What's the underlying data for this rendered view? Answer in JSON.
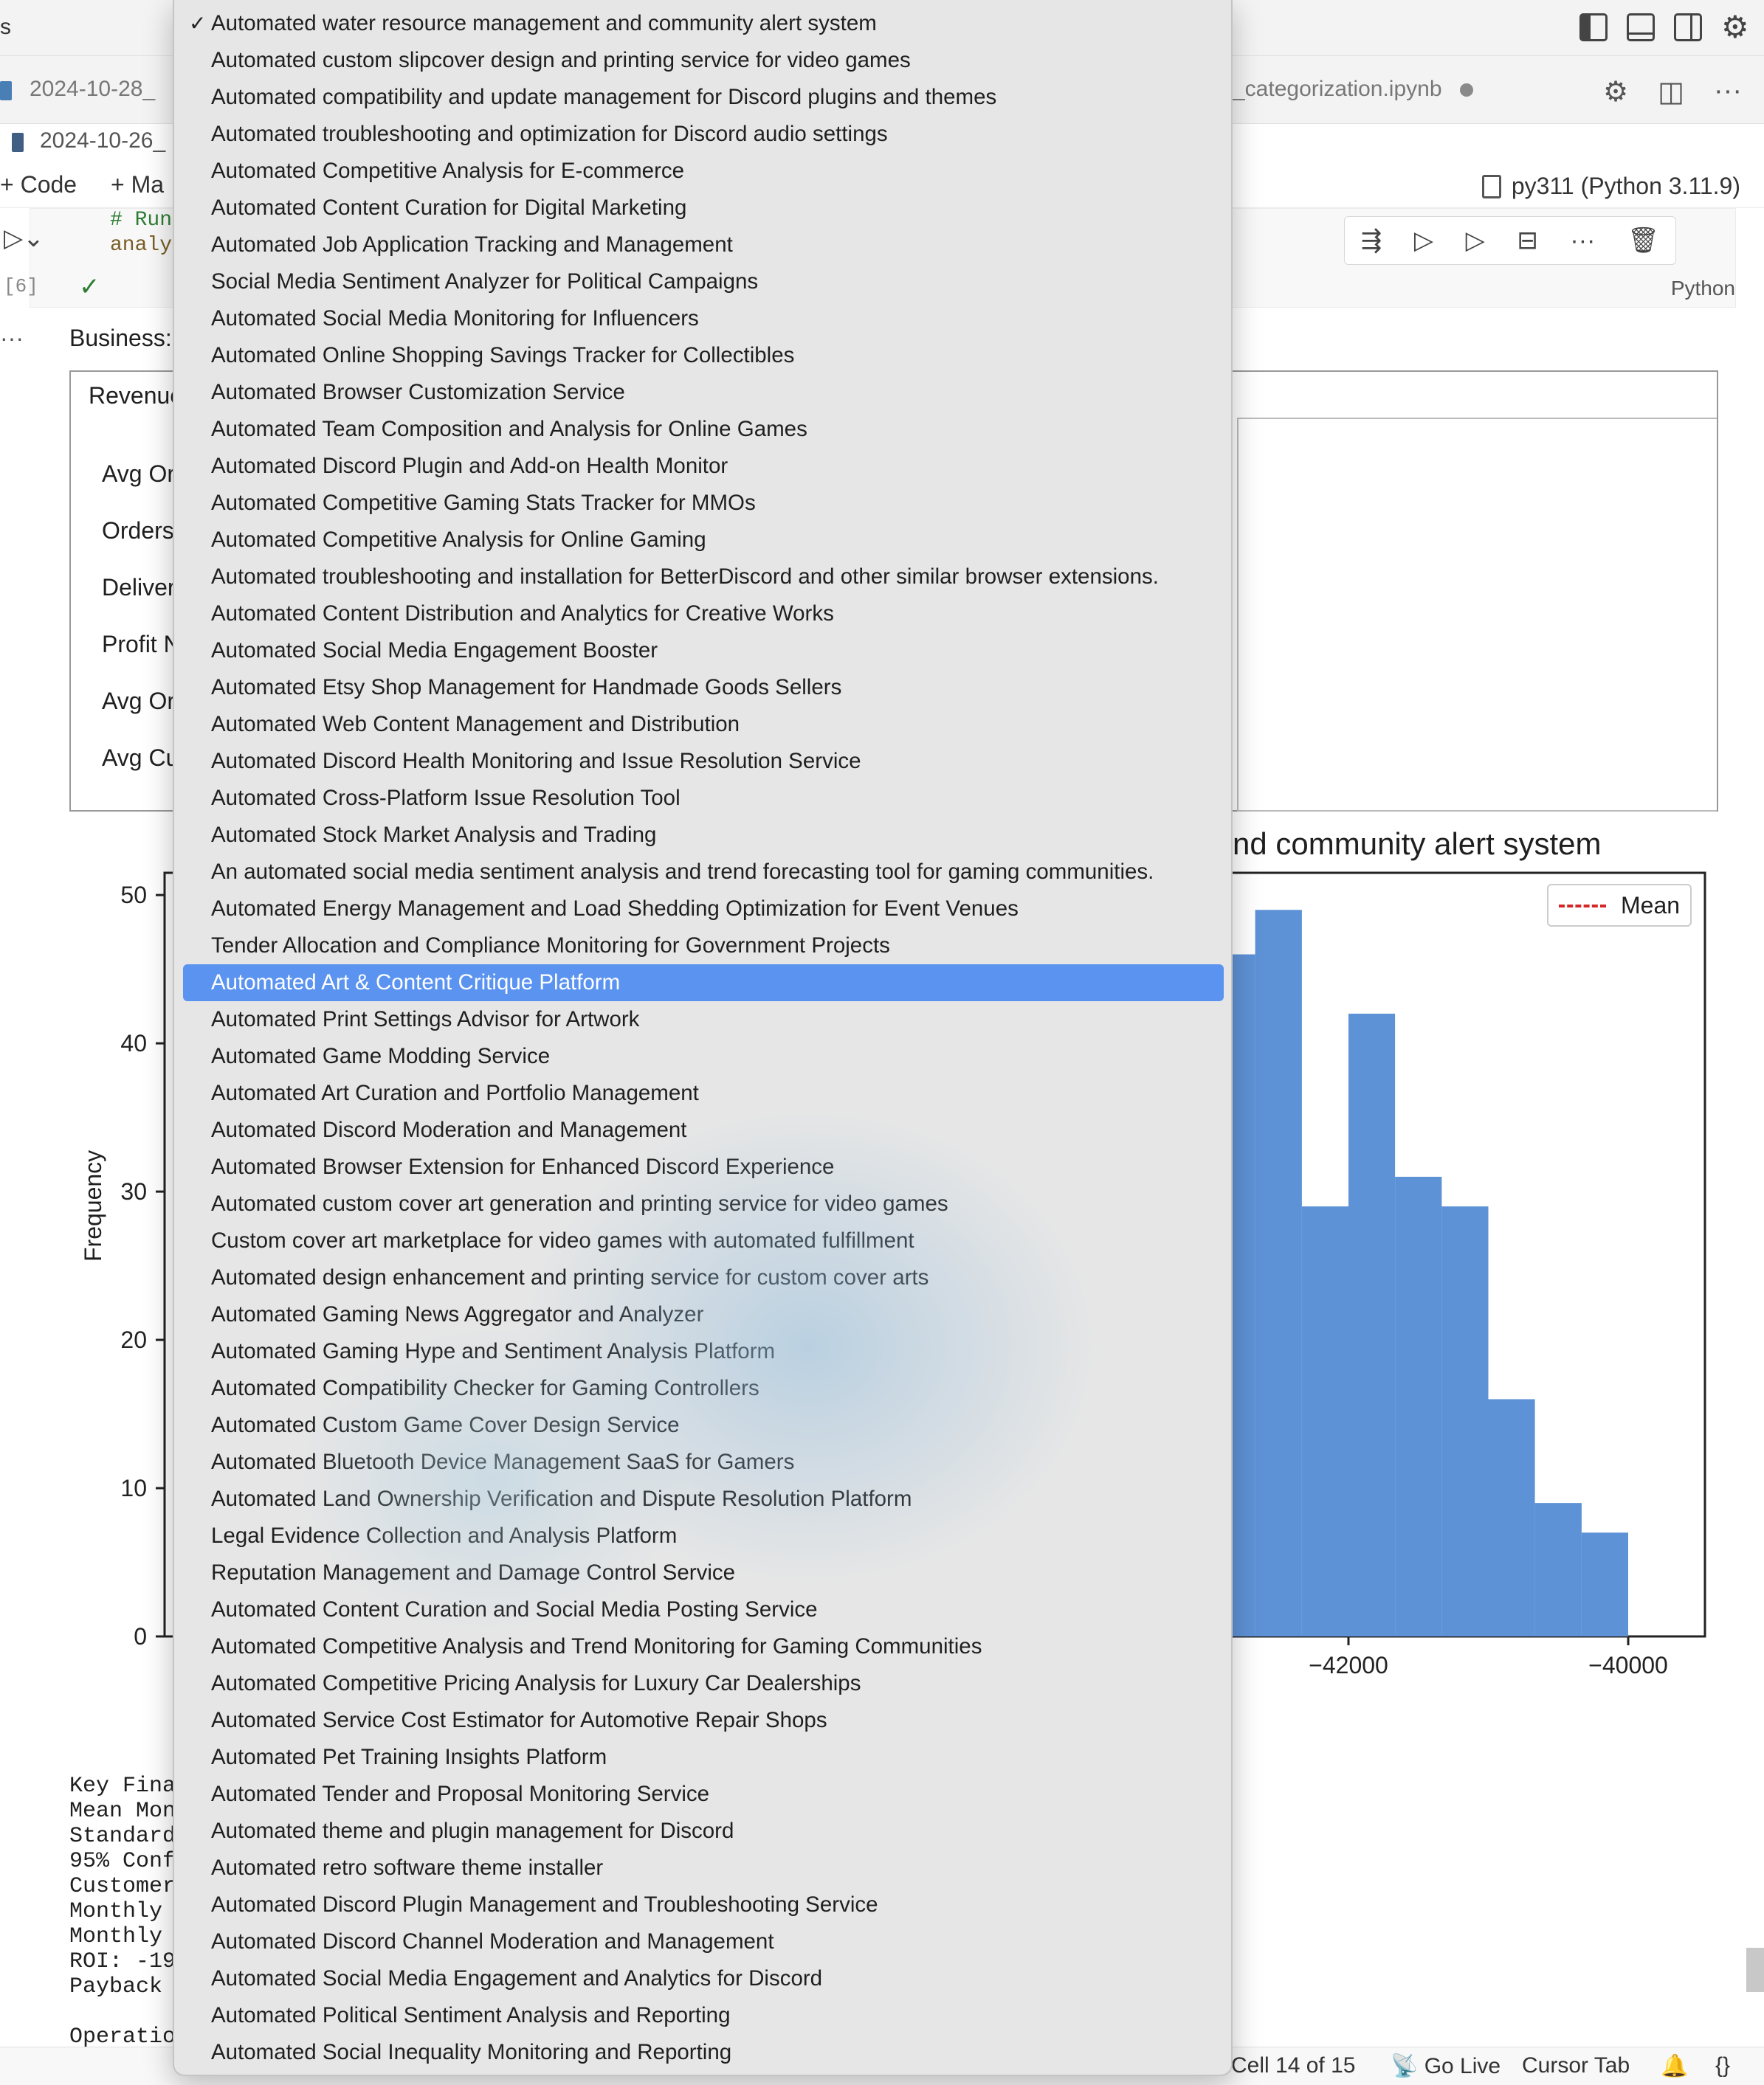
{
  "titlebar": {
    "left_text": "s"
  },
  "tabs": [
    {
      "label": "2024-10-28_"
    },
    {
      "label": "_categorization.ipynb"
    }
  ],
  "breadcrumb": {
    "text": "2024-10-26_"
  },
  "notebook_toolbar": {
    "code_label": "Code",
    "markdown_label": "Ma",
    "kernel_label": "py311 (Python 3.11.9)"
  },
  "cell": {
    "code_line_1": "# Run",
    "code_line_2": "analy",
    "exec_count": "[6]",
    "language": "Python"
  },
  "output": {
    "more": "···",
    "label": "Business:",
    "metrics_header": "Revenue",
    "metrics_rows": [
      "Avg Or",
      "Orders",
      "Deliver",
      "Profit N",
      "Avg Or",
      "Avg Cu"
    ],
    "text_lines": [
      "Key Finar",
      "Mean Mon",
      "Standard",
      "95% Conf",
      "Customer",
      "Monthly I",
      "Monthly (",
      "ROI: -19",
      "Payback I",
      "",
      "Operation"
    ]
  },
  "chart_data": {
    "type": "bar",
    "title": "nd community alert system",
    "ylabel": "Frequency",
    "legend": [
      {
        "label": "Mean",
        "style": "dashed",
        "color": "#d62728"
      }
    ],
    "legend_placement": "top-right",
    "y_ticks": [
      0,
      10,
      20,
      30,
      40,
      50
    ],
    "x_ticks": [
      -42000,
      -40000
    ],
    "ylim": [
      0,
      51.5
    ],
    "bar_color": "#5e92d6",
    "bins": [
      {
        "x0": -43000,
        "x1": -42667,
        "count": 46
      },
      {
        "x0": -42667,
        "x1": -42333,
        "count": 49
      },
      {
        "x0": -42333,
        "x1": -42000,
        "count": 29
      },
      {
        "x0": -42000,
        "x1": -41667,
        "count": 42
      },
      {
        "x0": -41667,
        "x1": -41333,
        "count": 31
      },
      {
        "x0": -41333,
        "x1": -41000,
        "count": 29
      },
      {
        "x0": -41000,
        "x1": -40667,
        "count": 16
      },
      {
        "x0": -40667,
        "x1": -40333,
        "count": 9
      },
      {
        "x0": -40333,
        "x1": -40000,
        "count": 7
      }
    ]
  },
  "statusbar": {
    "cell_position": "Cell 14 of 15",
    "go_live": "Go Live",
    "cursor_tab": "Cursor Tab"
  },
  "dropdown": {
    "checked_index": 0,
    "highlighted_index": 26,
    "items": [
      "Automated water resource management and community alert system",
      "Automated custom slipcover design and printing service for video games",
      "Automated compatibility and update management for Discord plugins and themes",
      "Automated troubleshooting and optimization for Discord audio settings",
      "Automated Competitive Analysis for E-commerce",
      "Automated Content Curation for Digital Marketing",
      "Automated Job Application Tracking and Management",
      "Social Media Sentiment Analyzer for Political Campaigns",
      "Automated Social Media Monitoring for Influencers",
      "Automated Online Shopping Savings Tracker for Collectibles",
      "Automated Browser Customization Service",
      "Automated Team Composition and Analysis for Online Games",
      "Automated Discord Plugin and Add-on Health Monitor",
      "Automated Competitive Gaming Stats Tracker for MMOs",
      "Automated Competitive Analysis for Online Gaming",
      "Automated troubleshooting and installation for BetterDiscord and other similar browser extensions.",
      "Automated Content Distribution and Analytics for Creative Works",
      "Automated Social Media Engagement Booster",
      "Automated Etsy Shop Management for Handmade Goods Sellers",
      "Automated Web Content Management and Distribution",
      "Automated Discord Health Monitoring and Issue Resolution Service",
      "Automated Cross-Platform Issue Resolution Tool",
      "Automated Stock Market Analysis and Trading",
      "An automated social media sentiment analysis and trend forecasting tool for gaming communities.",
      "Automated Energy Management and Load Shedding Optimization for Event Venues",
      "Tender Allocation and Compliance Monitoring for Government Projects",
      "Automated Art & Content Critique Platform",
      "Automated Print Settings Advisor for Artwork",
      "Automated Game Modding Service",
      "Automated Art Curation and Portfolio Management",
      "Automated Discord Moderation and Management",
      "Automated Browser Extension for Enhanced Discord Experience",
      "Automated custom cover art generation and printing service for video games",
      "Custom cover art marketplace for video games with automated fulfillment",
      "Automated design enhancement and printing service for custom cover arts",
      "Automated Gaming News Aggregator and Analyzer",
      "Automated Gaming Hype and Sentiment Analysis Platform",
      "Automated Compatibility Checker for Gaming Controllers",
      "Automated Custom Game Cover Design Service",
      "Automated Bluetooth Device Management SaaS for Gamers",
      "Automated Land Ownership Verification and Dispute Resolution Platform",
      "Legal Evidence Collection and Analysis Platform",
      "Reputation Management and Damage Control Service",
      "Automated Content Curation and Social Media Posting Service",
      "Automated Competitive Analysis and Trend Monitoring for Gaming Communities",
      "Automated Competitive Pricing Analysis for Luxury Car Dealerships",
      "Automated Service Cost Estimator for Automotive Repair Shops",
      "Automated Pet Training Insights Platform",
      "Automated Tender and Proposal Monitoring Service",
      "Automated theme and plugin management for Discord",
      "Automated retro software theme installer",
      "Automated Discord Plugin Management and Troubleshooting Service",
      "Automated Discord Channel Moderation and Management",
      "Automated Social Media Engagement and Analytics for Discord",
      "Automated Political Sentiment Analysis and Reporting",
      "Automated Social Inequality Monitoring and Reporting"
    ]
  }
}
